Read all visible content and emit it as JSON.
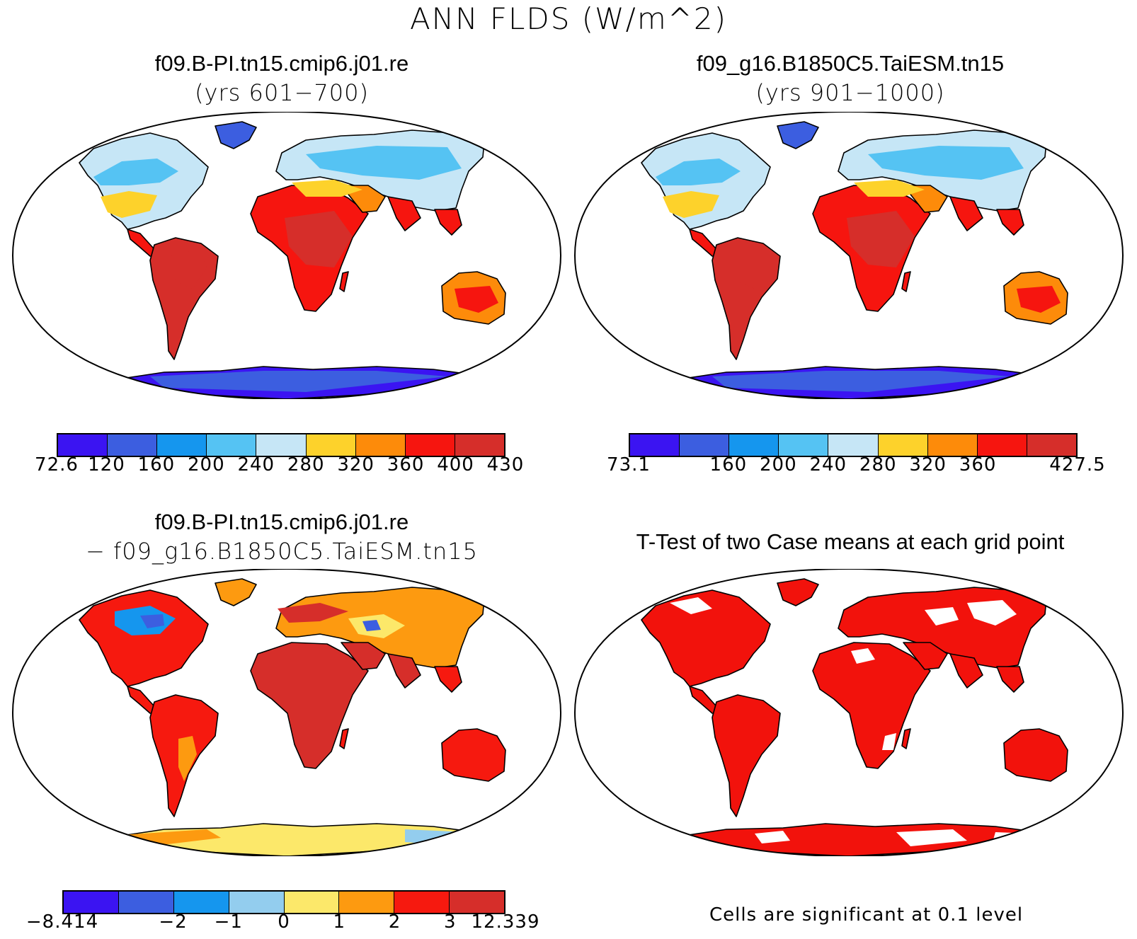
{
  "figure": {
    "title": "ANN FLDS (W/m^2)"
  },
  "panels": {
    "p1": {
      "title": "f09.B-PI.tn15.cmip6.j01.re",
      "subtitle": "(yrs 601−700)"
    },
    "p2": {
      "title": "f09_g16.B1850C5.TaiESM.tn15",
      "subtitle": "(yrs 901−1000)"
    },
    "p3": {
      "title": "f09.B-PI.tn15.cmip6.j01.re",
      "subtitle": "− f09_g16.B1850C5.TaiESM.tn15"
    },
    "p4": {
      "title": "T-Test of two Case means at each grid point",
      "note": "Cells are significant at 0.1 level"
    }
  },
  "colorbars": {
    "cb1": {
      "colors": [
        "#3b14f2",
        "#3c5ee0",
        "#1596ee",
        "#55c3f3",
        "#c6e6f6",
        "#fdd22b",
        "#fd8b0a",
        "#f6150f",
        "#d62e2a"
      ],
      "labels": [
        "72.6",
        "120",
        "160",
        "200",
        "240",
        "280",
        "320",
        "360",
        "400",
        "430"
      ]
    },
    "cb2": {
      "colors": [
        "#3b14f2",
        "#3c5ee0",
        "#1596ee",
        "#55c3f3",
        "#c6e6f6",
        "#fdd22b",
        "#fd8b0a",
        "#f6150f",
        "#d62e2a"
      ],
      "labels": [
        "73.1",
        "",
        "160",
        "200",
        "240",
        "280",
        "320",
        "360",
        "",
        "427.5"
      ]
    },
    "cb3": {
      "colors": [
        "#3b14f2",
        "#3c5ee0",
        "#1596ee",
        "#93cdee",
        "#fce86a",
        "#fd9a10",
        "#f6190f",
        "#d62e2a"
      ],
      "labels": [
        "−8.414",
        "",
        "−2",
        "−1",
        "0",
        "1",
        "2",
        "3",
        "12.339"
      ]
    }
  },
  "colors": {
    "ocean": "#ffffff",
    "significant": "#f2120c",
    "coast": "#000000"
  }
}
